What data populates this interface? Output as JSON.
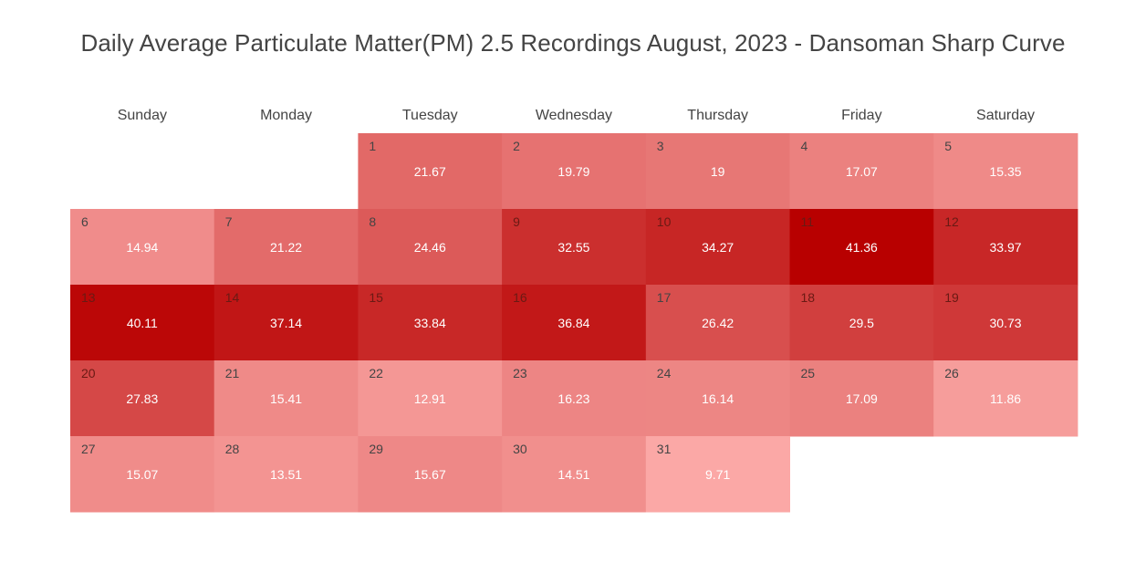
{
  "chart_data": {
    "type": "heatmap",
    "title": "Daily Average Particulate Matter(PM) 2.5 Recordings August, 2023 - Dansoman Sharp Curve",
    "weekdays": [
      "Sunday",
      "Monday",
      "Tuesday",
      "Wednesday",
      "Thursday",
      "Friday",
      "Saturday"
    ],
    "first_weekday_index": 2,
    "days": [
      1,
      2,
      3,
      4,
      5,
      6,
      7,
      8,
      9,
      10,
      11,
      12,
      13,
      14,
      15,
      16,
      17,
      18,
      19,
      20,
      21,
      22,
      23,
      24,
      25,
      26,
      27,
      28,
      29,
      30,
      31
    ],
    "values": [
      21.67,
      19.79,
      19,
      17.07,
      15.35,
      14.94,
      21.22,
      24.46,
      32.55,
      34.27,
      41.36,
      33.97,
      40.11,
      37.14,
      33.84,
      36.84,
      26.42,
      29.5,
      30.73,
      27.83,
      15.41,
      12.91,
      16.23,
      16.14,
      17.09,
      11.86,
      15.07,
      13.51,
      15.67,
      14.51,
      9.71
    ],
    "color_low": "#fba8a6",
    "color_high": "#b80000",
    "legend": "none",
    "grid": false
  }
}
